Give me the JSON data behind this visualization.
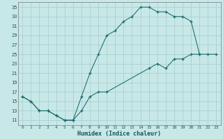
{
  "xlabel": "Humidex (Indice chaleur)",
  "bg_color": "#c8e8e8",
  "line_color": "#1a6b6b",
  "grid_color": "#a8d0d0",
  "xlim": [
    -0.5,
    23.5
  ],
  "ylim": [
    10.0,
    36.0
  ],
  "xticks": [
    0,
    1,
    2,
    3,
    4,
    5,
    6,
    7,
    8,
    9,
    10,
    11,
    12,
    13,
    14,
    15,
    16,
    17,
    18,
    19,
    20,
    21,
    22,
    23
  ],
  "yticks": [
    11,
    13,
    15,
    17,
    19,
    21,
    23,
    25,
    27,
    29,
    31,
    33,
    35
  ],
  "upper_x": [
    0,
    1,
    2,
    3,
    4,
    5,
    6,
    7,
    8,
    9,
    10,
    11,
    12,
    13,
    14,
    15,
    16,
    17,
    18,
    19,
    20,
    21
  ],
  "upper_y": [
    16,
    15,
    13,
    13,
    12,
    11,
    11,
    16,
    21,
    25,
    29,
    30,
    32,
    33,
    35,
    35,
    34,
    34,
    33,
    33,
    32,
    25
  ],
  "lower_x": [
    0,
    1,
    2,
    3,
    4,
    5,
    6,
    7,
    8,
    9,
    10,
    15,
    16,
    17,
    18,
    19,
    20,
    21,
    22,
    23
  ],
  "lower_y": [
    16,
    15,
    13,
    13,
    12,
    11,
    11,
    13,
    16,
    17,
    17,
    22,
    23,
    22,
    24,
    24,
    25,
    25,
    25,
    25
  ]
}
